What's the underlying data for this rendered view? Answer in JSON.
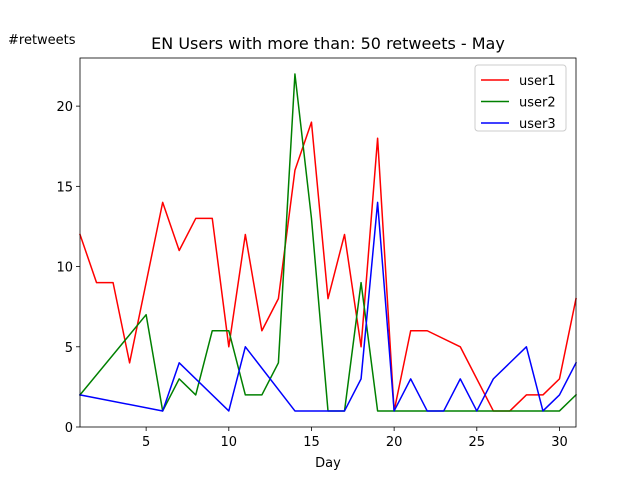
{
  "chart_data": {
    "type": "line",
    "title": "EN Users with more than: 50 retweets - May",
    "xlabel": "Day",
    "ylabel": "#retweets",
    "xlim": [
      1,
      31
    ],
    "ylim": [
      0,
      23
    ],
    "xticks": [
      5,
      10,
      15,
      20,
      25,
      30
    ],
    "yticks": [
      0,
      5,
      10,
      15,
      20
    ],
    "grid": false,
    "legend_position": "top-right",
    "series": [
      {
        "name": "user1",
        "color": "#ff0000",
        "points": [
          [
            1,
            12
          ],
          [
            2,
            9
          ],
          [
            3,
            9
          ],
          [
            4,
            4
          ],
          [
            6,
            14
          ],
          [
            7,
            11
          ],
          [
            8,
            13
          ],
          [
            9,
            13
          ],
          [
            10,
            5
          ],
          [
            11,
            12
          ],
          [
            12,
            6
          ],
          [
            13,
            8
          ],
          [
            14,
            16
          ],
          [
            15,
            19
          ],
          [
            16,
            8
          ],
          [
            17,
            12
          ],
          [
            18,
            5
          ],
          [
            19,
            18
          ],
          [
            20,
            1
          ],
          [
            21,
            6
          ],
          [
            22,
            6
          ],
          [
            24,
            5
          ],
          [
            26,
            1
          ],
          [
            27,
            1
          ],
          [
            28,
            2
          ],
          [
            29,
            2
          ],
          [
            30,
            3
          ],
          [
            31,
            8
          ]
        ]
      },
      {
        "name": "user2",
        "color": "#008000",
        "points": [
          [
            1,
            2
          ],
          [
            5,
            7
          ],
          [
            6,
            1
          ],
          [
            7,
            3
          ],
          [
            8,
            2
          ],
          [
            9,
            6
          ],
          [
            10,
            6
          ],
          [
            11,
            2
          ],
          [
            12,
            2
          ],
          [
            13,
            4
          ],
          [
            14,
            22
          ],
          [
            15,
            13
          ],
          [
            16,
            1
          ],
          [
            17,
            1
          ],
          [
            18,
            9
          ],
          [
            19,
            1
          ],
          [
            20,
            1
          ],
          [
            29,
            1
          ],
          [
            30,
            1
          ],
          [
            31,
            2
          ]
        ]
      },
      {
        "name": "user3",
        "color": "#0000ff",
        "points": [
          [
            1,
            2
          ],
          [
            6,
            1
          ],
          [
            7,
            4
          ],
          [
            10,
            1
          ],
          [
            11,
            5
          ],
          [
            14,
            1
          ],
          [
            17,
            1
          ],
          [
            18,
            3
          ],
          [
            19,
            14
          ],
          [
            20,
            1
          ],
          [
            21,
            3
          ],
          [
            22,
            1
          ],
          [
            23,
            1
          ],
          [
            24,
            3
          ],
          [
            25,
            1
          ],
          [
            26,
            3
          ],
          [
            28,
            5
          ],
          [
            29,
            1
          ],
          [
            30,
            2
          ],
          [
            31,
            4
          ]
        ]
      }
    ]
  }
}
